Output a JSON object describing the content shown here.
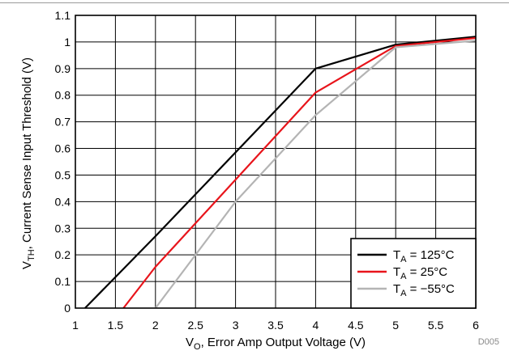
{
  "chart_data": {
    "type": "line",
    "xlabel": "Vₒ, Error Amp Output Voltage (V)",
    "xlabel_main": "V",
    "xlabel_sub": "O",
    "xlabel_rest": ", Error Amp Output Voltage (V)",
    "ylabel_main": "V",
    "ylabel_sub": "TH",
    "ylabel_rest": ", Current Sense Input Threshold (V)",
    "xlim": [
      1,
      6
    ],
    "ylim": [
      0,
      1.1
    ],
    "x_ticks": [
      "1",
      "1.5",
      "2",
      "2.5",
      "3",
      "3.5",
      "4",
      "4.5",
      "5",
      "5.5",
      "6"
    ],
    "y_ticks": [
      "0",
      "0.1",
      "0.2",
      "0.3",
      "0.4",
      "0.5",
      "0.6",
      "0.7",
      "0.8",
      "0.9",
      "1",
      "1.1"
    ],
    "grid": true,
    "legend_position": "bottom-right",
    "series": [
      {
        "name_main": "T",
        "name_sub": "A",
        "name_rest": " = 125°C",
        "color": "#000000",
        "points": [
          [
            1.12,
            0
          ],
          [
            2.0,
            0.27
          ],
          [
            4.0,
            0.9
          ],
          [
            5.0,
            0.99
          ],
          [
            6.0,
            1.02
          ]
        ]
      },
      {
        "name_main": "T",
        "name_sub": "A",
        "name_rest": " = 25°C",
        "color": "#e8141b",
        "points": [
          [
            1.6,
            0
          ],
          [
            2.0,
            0.155
          ],
          [
            4.0,
            0.81
          ],
          [
            5.0,
            0.985
          ],
          [
            6.0,
            1.015
          ]
        ]
      },
      {
        "name_main": "T",
        "name_sub": "A",
        "name_rest": " = −55°C",
        "color": "#b4b4b4",
        "points": [
          [
            2.0,
            0
          ],
          [
            3.0,
            0.4
          ],
          [
            4.0,
            0.725
          ],
          [
            5.0,
            0.98
          ],
          [
            6.0,
            1.005
          ]
        ]
      }
    ],
    "figure_code": "D005"
  }
}
